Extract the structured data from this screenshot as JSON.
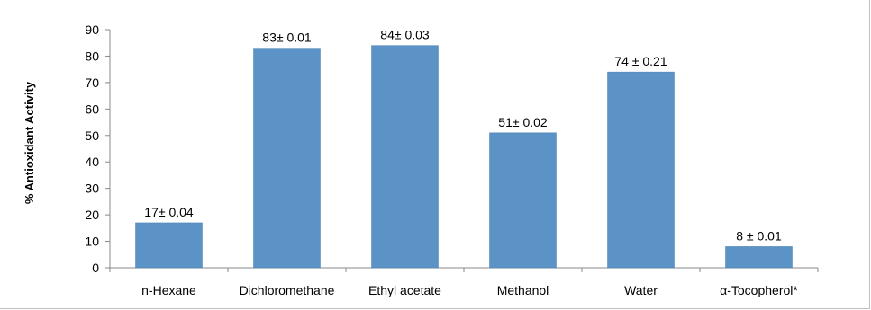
{
  "chart_data": {
    "type": "bar",
    "title": "",
    "xlabel": "",
    "ylabel": "% Antioxidant Activity",
    "ylim": [
      0,
      90
    ],
    "yticks": [
      0,
      10,
      20,
      30,
      40,
      50,
      60,
      70,
      80,
      90
    ],
    "categories": [
      "n-Hexane",
      "Dichloromethane",
      "Ethyl acetate",
      "Methanol",
      "Water",
      "α-Tocopherol*"
    ],
    "values": [
      17,
      83,
      84,
      51,
      74,
      8
    ],
    "data_labels": [
      "17± 0.04",
      "83± 0.01",
      "84± 0.03",
      "51± 0.02",
      "74 ± 0.21",
      "8 ± 0.01"
    ],
    "grid": false,
    "legend": "none",
    "bar_color": "#5b93c6"
  }
}
